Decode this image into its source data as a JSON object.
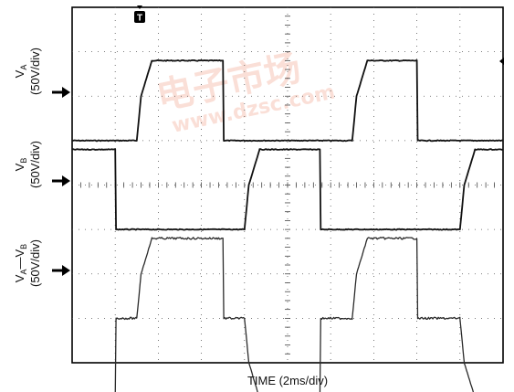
{
  "chart_data": {
    "type": "line",
    "xlabel": "TIME (2ms/div)",
    "x_unit_per_div": "2ms",
    "x_divisions": 10,
    "y_divisions": 8,
    "grid": true,
    "trigger_marker": "T",
    "channels": [
      {
        "name": "VA",
        "label_main": "V",
        "label_sub": "A",
        "label_scale": "(50V/div)",
        "scale": "50V/div",
        "reference_div_from_top": 3,
        "x_div": [
          0,
          1.5,
          1.6,
          1.85,
          3.5,
          3.52,
          6.5,
          6.6,
          6.85,
          8.0,
          8.02,
          10.0
        ],
        "y_div": [
          0,
          0,
          1.0,
          1.8,
          1.8,
          0,
          0,
          1.0,
          1.8,
          1.8,
          0,
          0
        ]
      },
      {
        "name": "VB",
        "label_main": "V",
        "label_sub": "B",
        "label_scale": "(50V/div)",
        "scale": "50V/div",
        "reference_div_from_top": 5,
        "x_div": [
          0,
          1.0,
          1.02,
          4.0,
          4.1,
          4.35,
          5.75,
          5.77,
          9.0,
          9.1,
          9.35,
          10.0
        ],
        "y_div": [
          1.8,
          1.8,
          0,
          0,
          1.0,
          1.8,
          1.8,
          0,
          0,
          1.0,
          1.8,
          1.8
        ]
      },
      {
        "name": "VA-VB",
        "label_main": "V",
        "label_sub": "A",
        "label_dash": "—",
        "label_main2": "V",
        "label_sub2": "B",
        "label_scale": "(50V/div)",
        "scale": "50V/div",
        "reference_div_from_top": 7,
        "x_div": [
          0,
          1.0,
          1.02,
          1.5,
          1.6,
          1.85,
          3.5,
          3.52,
          4.0,
          4.1,
          4.35,
          5.75,
          5.77,
          6.5,
          6.6,
          6.85,
          8.0,
          8.02,
          9.0,
          9.1,
          9.35,
          10.0
        ],
        "y_div": [
          -1.8,
          -1.8,
          0,
          0,
          1.0,
          1.8,
          1.8,
          0,
          0,
          -1.0,
          -1.8,
          -1.8,
          0,
          0,
          1.0,
          1.8,
          1.8,
          0,
          0,
          -1.0,
          -1.8,
          -1.8
        ]
      }
    ]
  },
  "watermark": {
    "main": "电子市场",
    "url": "www.dzsc.com",
    "color": "#e8522a"
  }
}
